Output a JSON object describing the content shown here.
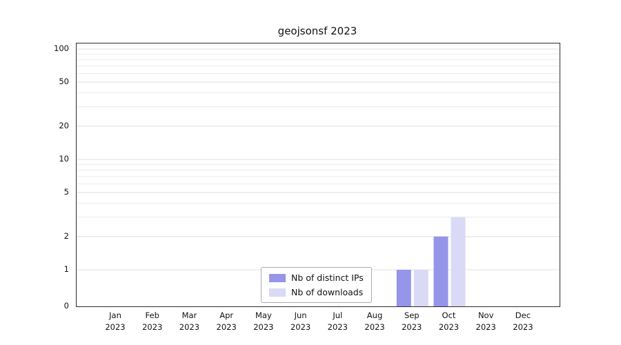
{
  "title": "geojsonsf 2023",
  "chart_data": {
    "type": "bar",
    "title": "geojsonsf 2023",
    "xlabel": "",
    "ylabel": "",
    "yscale": "symlog",
    "ylim": [
      0,
      100
    ],
    "grid": true,
    "legend_position": "bottom-center",
    "x_year": "2023",
    "x_months": [
      "Jan",
      "Feb",
      "Mar",
      "Apr",
      "May",
      "Jun",
      "Jul",
      "Aug",
      "Sep",
      "Oct",
      "Nov",
      "Dec"
    ],
    "categories": [
      "Jan 2023",
      "Feb 2023",
      "Mar 2023",
      "Apr 2023",
      "May 2023",
      "Jun 2023",
      "Jul 2023",
      "Aug 2023",
      "Sep 2023",
      "Oct 2023",
      "Nov 2023",
      "Dec 2023"
    ],
    "yticks": [
      0,
      1,
      2,
      5,
      10,
      20,
      50,
      100
    ],
    "minor_gridlines": [
      2,
      3,
      4,
      5,
      6,
      7,
      8,
      9,
      20,
      30,
      40,
      50,
      60,
      70,
      80,
      90
    ],
    "series": [
      {
        "name": "Nb of distinct IPs",
        "color": "#9595ea",
        "values": [
          0,
          0,
          0,
          0,
          0,
          0,
          0,
          0,
          1,
          2,
          0,
          0
        ]
      },
      {
        "name": "Nb of downloads",
        "color": "#dadaf6",
        "values": [
          0,
          0,
          0,
          0,
          0,
          0,
          0,
          0,
          1,
          3,
          0,
          0
        ]
      }
    ]
  }
}
